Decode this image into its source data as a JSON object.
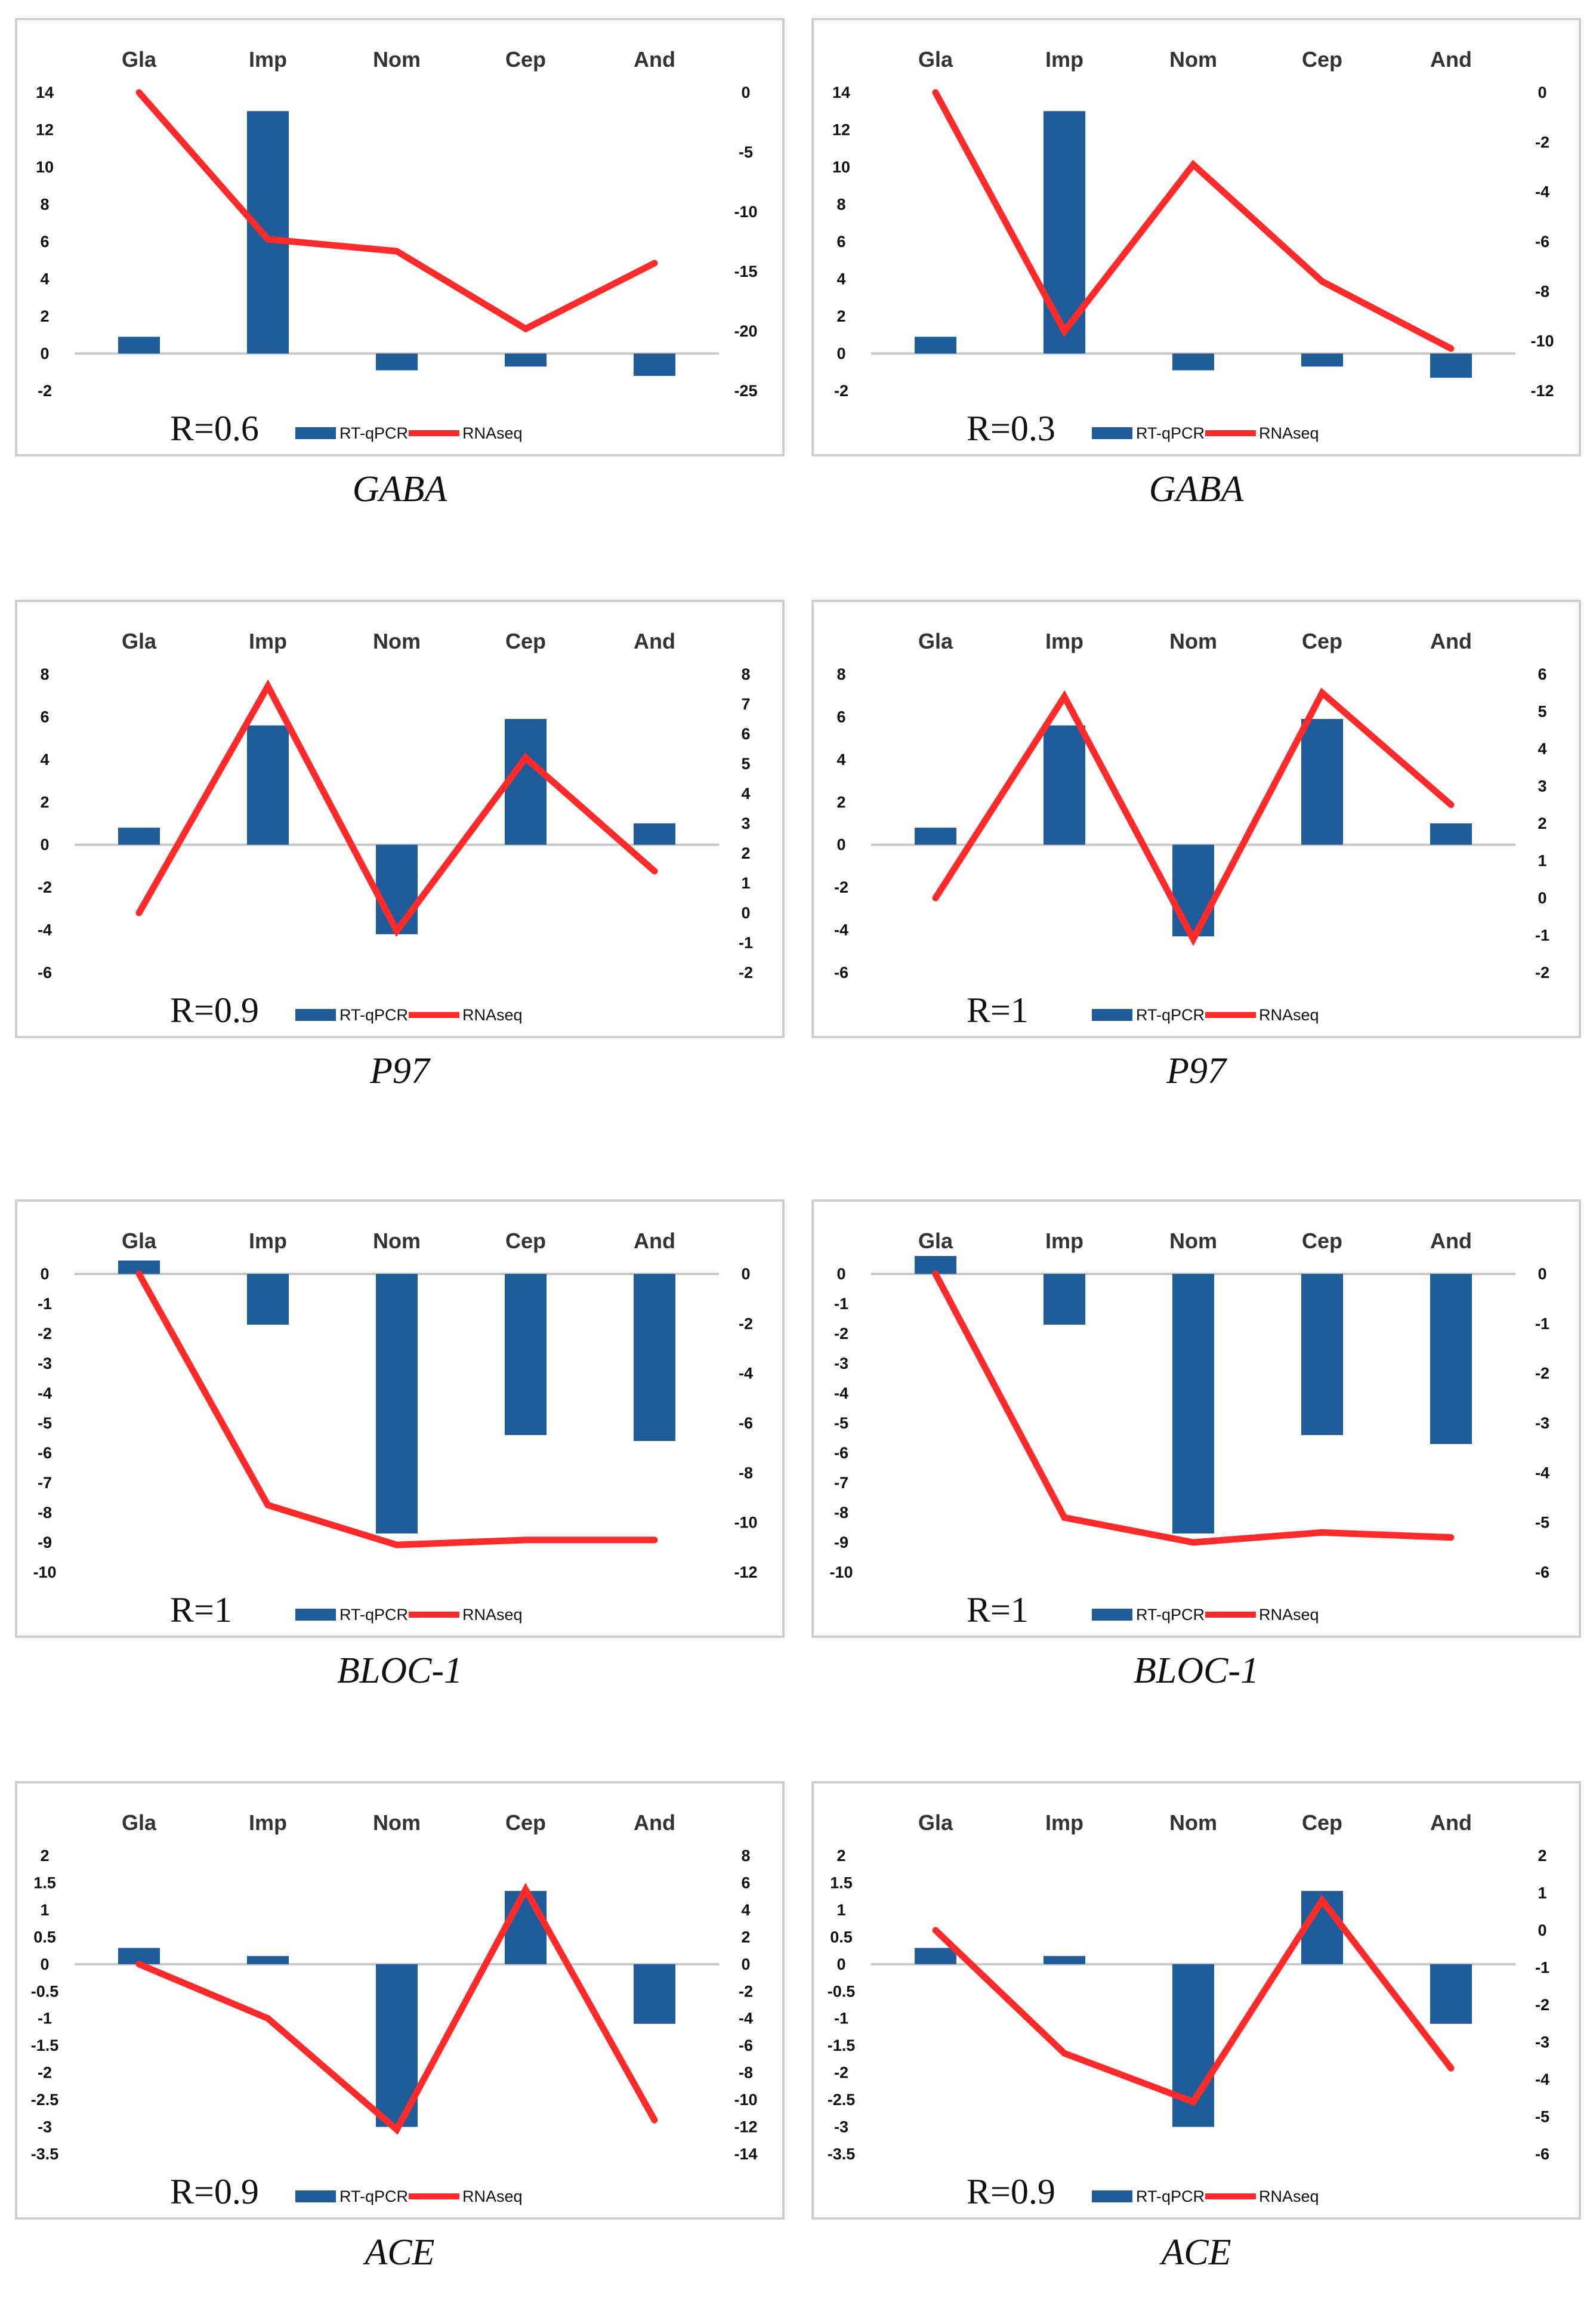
{
  "colors": {
    "bar": "#1f5c99",
    "line": "#ff2a2a",
    "axis": "#c8c8c8",
    "frame": "#cfcfcf",
    "text": "#111111"
  },
  "legend": {
    "bar_label": "RT-qPCR",
    "line_label": "RNAseq"
  },
  "chart_data": [
    {
      "type": "bar+line",
      "gene": "GABA",
      "r_label": "R=0.6",
      "categories": [
        "Gla",
        "Imp",
        "Nom",
        "Cep",
        "And"
      ],
      "series": [
        {
          "name": "RT-qPCR",
          "axis": "left",
          "values": [
            0.9,
            13,
            -0.9,
            -0.7,
            -1.2
          ]
        },
        {
          "name": "RNAseq",
          "axis": "right",
          "values": [
            0,
            -12.3,
            -13.3,
            -19.8,
            -14.3
          ]
        }
      ],
      "y_left": {
        "ylim": [
          -2,
          14
        ],
        "ticks": [
          -2,
          0,
          2,
          4,
          6,
          8,
          10,
          12,
          14
        ],
        "tick_labels": [
          "-2",
          "0",
          "2",
          "4",
          "6",
          "8",
          "10",
          "12",
          "14"
        ]
      },
      "y_right": {
        "ylim": [
          -25,
          0
        ],
        "ticks": [
          -25,
          -20,
          -15,
          -10,
          -5,
          0
        ],
        "tick_labels": [
          "-25",
          "-20",
          "-15",
          "-10",
          "-5",
          "0"
        ]
      }
    },
    {
      "type": "bar+line",
      "gene": "GABA",
      "r_label": "R=0.3",
      "categories": [
        "Gla",
        "Imp",
        "Nom",
        "Cep",
        "And"
      ],
      "series": [
        {
          "name": "RT-qPCR",
          "axis": "left",
          "values": [
            0.9,
            13,
            -0.9,
            -0.7,
            -1.3
          ]
        },
        {
          "name": "RNAseq",
          "axis": "right",
          "values": [
            0,
            -9.6,
            -2.9,
            -7.6,
            -10.3
          ]
        }
      ],
      "y_left": {
        "ylim": [
          -2,
          14
        ],
        "ticks": [
          -2,
          0,
          2,
          4,
          6,
          8,
          10,
          12,
          14
        ],
        "tick_labels": [
          "-2",
          "0",
          "2",
          "4",
          "6",
          "8",
          "10",
          "12",
          "14"
        ]
      },
      "y_right": {
        "ylim": [
          -12,
          0
        ],
        "ticks": [
          -12,
          -10,
          -8,
          -6,
          -4,
          -2,
          0
        ],
        "tick_labels": [
          "-12",
          "-10",
          "-8",
          "-6",
          "-4",
          "-2",
          "0"
        ]
      }
    },
    {
      "type": "bar+line",
      "gene": "P97",
      "r_label": "R=0.9",
      "categories": [
        "Gla",
        "Imp",
        "Nom",
        "Cep",
        "And"
      ],
      "series": [
        {
          "name": "RT-qPCR",
          "axis": "left",
          "values": [
            0.8,
            5.6,
            -4.2,
            5.9,
            1.0
          ]
        },
        {
          "name": "RNAseq",
          "axis": "right",
          "values": [
            0,
            7.6,
            -0.6,
            5.2,
            1.4
          ]
        }
      ],
      "y_left": {
        "ylim": [
          -6,
          8
        ],
        "ticks": [
          -6,
          -4,
          -2,
          0,
          2,
          4,
          6,
          8
        ],
        "tick_labels": [
          "-6",
          "-4",
          "-2",
          "0",
          "2",
          "4",
          "6",
          "8"
        ]
      },
      "y_right": {
        "ylim": [
          -2,
          8
        ],
        "ticks": [
          -2,
          -1,
          0,
          1,
          2,
          3,
          4,
          5,
          6,
          7,
          8
        ],
        "tick_labels": [
          "-2",
          "-1",
          "0",
          "1",
          "2",
          "3",
          "4",
          "5",
          "6",
          "7",
          "8"
        ]
      }
    },
    {
      "type": "bar+line",
      "gene": "P97",
      "r_label": "R=1",
      "categories": [
        "Gla",
        "Imp",
        "Nom",
        "Cep",
        "And"
      ],
      "series": [
        {
          "name": "RT-qPCR",
          "axis": "left",
          "values": [
            0.8,
            5.6,
            -4.3,
            5.9,
            1.0
          ]
        },
        {
          "name": "RNAseq",
          "axis": "right",
          "values": [
            0,
            5.4,
            -1.1,
            5.5,
            2.5
          ]
        }
      ],
      "y_left": {
        "ylim": [
          -6,
          8
        ],
        "ticks": [
          -6,
          -4,
          -2,
          0,
          2,
          4,
          6,
          8
        ],
        "tick_labels": [
          "-6",
          "-4",
          "-2",
          "0",
          "2",
          "4",
          "6",
          "8"
        ]
      },
      "y_right": {
        "ylim": [
          -2,
          6
        ],
        "ticks": [
          -2,
          -1,
          0,
          1,
          2,
          3,
          4,
          5,
          6
        ],
        "tick_labels": [
          "-2",
          "-1",
          "0",
          "1",
          "2",
          "3",
          "4",
          "5",
          "6"
        ]
      }
    },
    {
      "type": "bar+line",
      "gene": "BLOC-1",
      "r_label": "R=1",
      "categories": [
        "Gla",
        "Imp",
        "Nom",
        "Cep",
        "And"
      ],
      "series": [
        {
          "name": "RT-qPCR",
          "axis": "left",
          "values": [
            0.45,
            -1.7,
            -8.7,
            -5.4,
            -5.6
          ]
        },
        {
          "name": "RNAseq",
          "axis": "right",
          "values": [
            0,
            -9.3,
            -10.9,
            -10.7,
            -10.7
          ]
        }
      ],
      "y_left": {
        "ylim": [
          -10,
          0
        ],
        "ticks": [
          -10,
          -9,
          -8,
          -7,
          -6,
          -5,
          -4,
          -3,
          -2,
          -1,
          0
        ],
        "tick_labels": [
          "-10",
          "-9",
          "-8",
          "-7",
          "-6",
          "-5",
          "-4",
          "-3",
          "-2",
          "-1",
          "0"
        ]
      },
      "y_right": {
        "ylim": [
          -12,
          0
        ],
        "ticks": [
          -12,
          -10,
          -8,
          -6,
          -4,
          -2,
          0
        ],
        "tick_labels": [
          "-12",
          "-10",
          "-8",
          "-6",
          "-4",
          "-2",
          "0"
        ]
      }
    },
    {
      "type": "bar+line",
      "gene": "BLOC-1",
      "r_label": "R=1",
      "categories": [
        "Gla",
        "Imp",
        "Nom",
        "Cep",
        "And"
      ],
      "series": [
        {
          "name": "RT-qPCR",
          "axis": "left",
          "values": [
            0.6,
            -1.7,
            -8.7,
            -5.4,
            -5.7
          ]
        },
        {
          "name": "RNAseq",
          "axis": "right",
          "values": [
            0,
            -4.9,
            -5.4,
            -5.2,
            -5.3
          ]
        }
      ],
      "y_left": {
        "ylim": [
          -10,
          0
        ],
        "ticks": [
          -10,
          -9,
          -8,
          -7,
          -6,
          -5,
          -4,
          -3,
          -2,
          -1,
          0
        ],
        "tick_labels": [
          "-10",
          "-9",
          "-8",
          "-7",
          "-6",
          "-5",
          "-4",
          "-3",
          "-2",
          "-1",
          "0"
        ]
      },
      "y_right": {
        "ylim": [
          -6,
          0
        ],
        "ticks": [
          -6,
          -5,
          -4,
          -3,
          -2,
          -1,
          0
        ],
        "tick_labels": [
          "-6",
          "-5",
          "-4",
          "-3",
          "-2",
          "-1",
          "0"
        ]
      }
    },
    {
      "type": "bar+line",
      "gene": "ACE",
      "r_label": "R=0.9",
      "categories": [
        "Gla",
        "Imp",
        "Nom",
        "Cep",
        "And"
      ],
      "series": [
        {
          "name": "RT-qPCR",
          "axis": "left",
          "values": [
            0.3,
            0.15,
            -3.0,
            1.35,
            -1.1
          ]
        },
        {
          "name": "RNAseq",
          "axis": "right",
          "values": [
            0,
            -4.0,
            -12.2,
            5.5,
            -11.5
          ]
        }
      ],
      "y_left": {
        "ylim": [
          -3.5,
          2
        ],
        "ticks": [
          -3.5,
          -3,
          -2.5,
          -2,
          -1.5,
          -1,
          -0.5,
          0,
          0.5,
          1,
          1.5,
          2
        ],
        "tick_labels": [
          "-3.5",
          "-3",
          "-2.5",
          "-2",
          "-1.5",
          "-1",
          "-0.5",
          "0",
          "0.5",
          "1",
          "1.5",
          "2"
        ]
      },
      "y_right": {
        "ylim": [
          -14,
          8
        ],
        "ticks": [
          -14,
          -12,
          -10,
          -8,
          -6,
          -4,
          -2,
          0,
          2,
          4,
          6,
          8
        ],
        "tick_labels": [
          "-14",
          "-12",
          "-10",
          "-8",
          "-6",
          "-4",
          "-2",
          "0",
          "2",
          "4",
          "6",
          "8"
        ]
      }
    },
    {
      "type": "bar+line",
      "gene": "ACE",
      "r_label": "R=0.9",
      "categories": [
        "Gla",
        "Imp",
        "Nom",
        "Cep",
        "And"
      ],
      "series": [
        {
          "name": "RT-qPCR",
          "axis": "left",
          "values": [
            0.3,
            0.15,
            -3.0,
            1.35,
            -1.1
          ]
        },
        {
          "name": "RNAseq",
          "axis": "right",
          "values": [
            0,
            -3.3,
            -4.6,
            0.8,
            -3.7
          ]
        }
      ],
      "y_left": {
        "ylim": [
          -3.5,
          2
        ],
        "ticks": [
          -3.5,
          -3,
          -2.5,
          -2,
          -1.5,
          -1,
          -0.5,
          0,
          0.5,
          1,
          1.5,
          2
        ],
        "tick_labels": [
          "-3.5",
          "-3",
          "-2.5",
          "-2",
          "-1.5",
          "-1",
          "-0.5",
          "0",
          "0.5",
          "1",
          "1.5",
          "2"
        ]
      },
      "y_right": {
        "ylim": [
          -6,
          2
        ],
        "ticks": [
          -6,
          -5,
          -4,
          -3,
          -2,
          -1,
          0,
          1,
          2
        ],
        "tick_labels": [
          "-6",
          "-5",
          "-4",
          "-3",
          "-2",
          "-1",
          "0",
          "1",
          "2"
        ]
      }
    }
  ]
}
